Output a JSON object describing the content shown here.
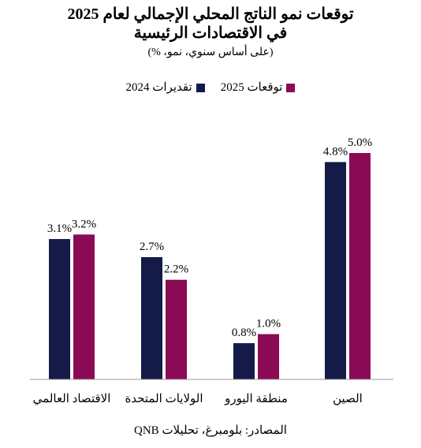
{
  "chart_data": {
    "type": "bar",
    "title_line1": "توقعات نمو الناتج المحلي الإجمالي لعام 2025",
    "title_line2": "في الاقتصادات الرئيسية",
    "subtitle": "(على أساس سنوي، نمو، %)",
    "source": "المصادر: بلومبرغ، تحليلات QNB",
    "categories": [
      "الاقتصاد العالمي",
      "الولايات المتحدة",
      "منطقة اليورو",
      "الصين"
    ],
    "series": [
      {
        "name": "تقديرات 2024",
        "color": "#141b48",
        "values": [
          3.1,
          2.7,
          0.8,
          4.8
        ],
        "labels": [
          "3.1%",
          "2.7%",
          "0.8%",
          "4.8%"
        ]
      },
      {
        "name": "توقعات 2025",
        "color": "#8b0a55",
        "values": [
          3.2,
          2.2,
          1.0,
          5.0
        ],
        "labels": [
          "3.2%",
          "2.2%",
          "1.0%",
          "5.0%"
        ]
      }
    ],
    "ylim": [
      0,
      5.5
    ],
    "grid": false,
    "legend_position": "top"
  }
}
